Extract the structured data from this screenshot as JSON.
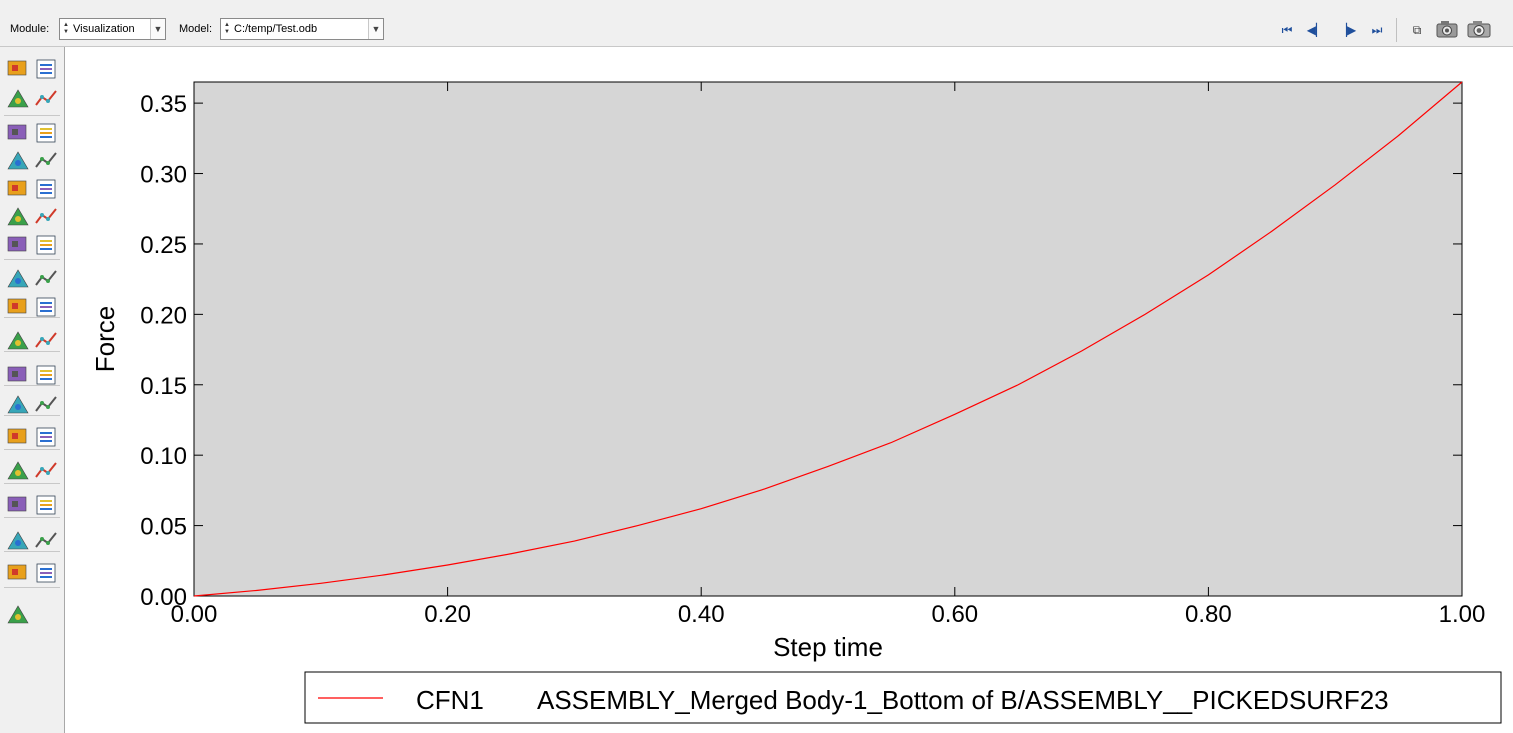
{
  "toolbar": {
    "module_label": "Module:",
    "module_value": "Visualization",
    "model_label": "Model:",
    "model_value": "C:/temp/Test.odb",
    "icons": [
      "first-frame-icon",
      "previous-frame-icon",
      "next-frame-icon",
      "last-frame-icon",
      "viewport-layout-icon",
      "movie-camera-icon",
      "camera-icon"
    ]
  },
  "left_toolbox": {
    "icons": [
      "node-labels-icon",
      "element-labels-icon",
      "display-groups-icon",
      "display-group-list-icon",
      "plot-undeformed-icon",
      "plot-deformed-icon",
      "plot-contours-icon",
      "contour-options-icon",
      "plot-symbols-icon",
      "symbol-options-icon",
      "plot-material-orientations-icon",
      "material-orientation-options-icon",
      "common-options-icon",
      "superimpose-options-icon",
      "animate-scale-factor-icon",
      "animate-harmonic-icon",
      "animate-time-history-icon",
      "animation-options-icon",
      "create-free-body-icon",
      "free-body-manager-icon",
      "create-xy-data-icon",
      "xy-data-manager-icon",
      "create-path-icon",
      "create-xy-plot-icon",
      "create-view-cut-icon",
      "view-cut-manager-icon",
      "create-section-points-icon",
      "section-points-manager-icon",
      "query-stress-linearization-icon",
      "stream-manager-icon",
      "create-stream-icon",
      "stream-options-icon",
      "report-icon",
      "report-options-icon",
      "custom-tool-icon"
    ]
  },
  "colors": {
    "plot_background": "#d6d6d6",
    "curve": "#ff0000",
    "toolbar": "#f0f0f0",
    "nav_icon": "#1f4f9c"
  },
  "chart_data": {
    "type": "line",
    "title": "",
    "xlabel": "Step time",
    "ylabel": "Force",
    "xlim": [
      0.0,
      1.0
    ],
    "ylim": [
      0.0,
      0.365
    ],
    "grid": false,
    "legend_placement": "below-right",
    "xticks": [
      "0.00",
      "0.20",
      "0.40",
      "0.60",
      "0.80",
      "1.00"
    ],
    "yticks": [
      "0.00",
      "0.05",
      "0.10",
      "0.15",
      "0.20",
      "0.25",
      "0.30",
      "0.35"
    ],
    "series": [
      {
        "name": "CFN1",
        "description": "ASSEMBLY_Merged Body-1_Bottom of B/ASSEMBLY__PICKEDSURF23",
        "color": "#ff0000",
        "x": [
          0.0,
          0.05,
          0.1,
          0.15,
          0.2,
          0.25,
          0.3,
          0.35,
          0.4,
          0.45,
          0.5,
          0.55,
          0.6,
          0.65,
          0.7,
          0.75,
          0.8,
          0.85,
          0.9,
          0.95,
          1.0
        ],
        "y": [
          0.0,
          0.004,
          0.009,
          0.015,
          0.022,
          0.03,
          0.039,
          0.05,
          0.062,
          0.076,
          0.092,
          0.109,
          0.129,
          0.15,
          0.174,
          0.2,
          0.228,
          0.259,
          0.292,
          0.327,
          0.365
        ]
      }
    ]
  }
}
